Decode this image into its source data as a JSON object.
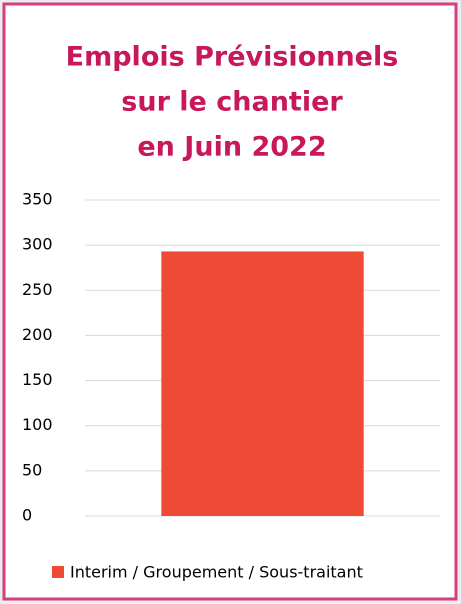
{
  "chart_data": {
    "type": "bar",
    "title": [
      "Emplois Prévisionnels",
      "sur le chantier",
      "en Juin 2022"
    ],
    "title_color": "#c8185a",
    "categories": [
      null
    ],
    "series": [
      {
        "name": "Interim / Groupement / Sous-traitant",
        "color": "#ef4a35",
        "values": [
          293
        ]
      }
    ],
    "ylim": [
      0,
      350
    ],
    "yticks": [
      0,
      50,
      100,
      150,
      200,
      250,
      300,
      350
    ],
    "grid": true,
    "legend": "bottom"
  }
}
